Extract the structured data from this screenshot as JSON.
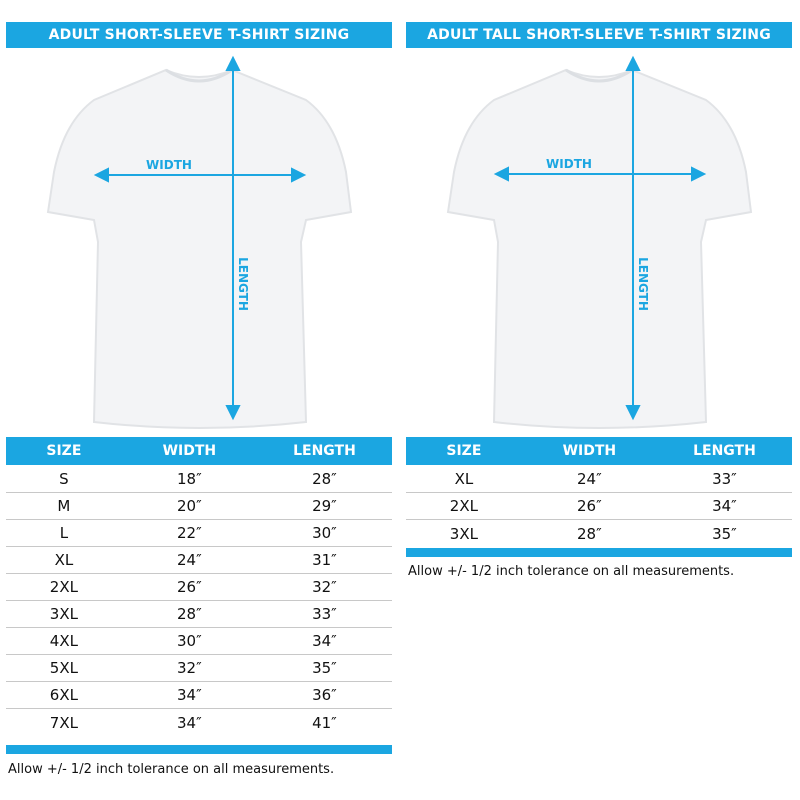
{
  "accent_color": "#1ba6e1",
  "left": {
    "title": "ADULT SHORT-SLEEVE T-SHIRT SIZING",
    "width_label": "WIDTH",
    "length_label": "LENGTH",
    "headers": [
      "SIZE",
      "WIDTH",
      "LENGTH"
    ],
    "rows": [
      [
        "S",
        "18″",
        "28″"
      ],
      [
        "M",
        "20″",
        "29″"
      ],
      [
        "L",
        "22″",
        "30″"
      ],
      [
        "XL",
        "24″",
        "31″"
      ],
      [
        "2XL",
        "26″",
        "32″"
      ],
      [
        "3XL",
        "28″",
        "33″"
      ],
      [
        "4XL",
        "30″",
        "34″"
      ],
      [
        "5XL",
        "32″",
        "35″"
      ],
      [
        "6XL",
        "34″",
        "36″"
      ],
      [
        "7XL",
        "34″",
        "41″"
      ]
    ],
    "note": "Allow +/- 1/2 inch tolerance on all measurements."
  },
  "right": {
    "title": "ADULT TALL SHORT-SLEEVE T-SHIRT SIZING",
    "width_label": "WIDTH",
    "length_label": "LENGTH",
    "headers": [
      "SIZE",
      "WIDTH",
      "LENGTH"
    ],
    "rows": [
      [
        "XL",
        "24″",
        "33″"
      ],
      [
        "2XL",
        "26″",
        "34″"
      ],
      [
        "3XL",
        "28″",
        "35″"
      ]
    ],
    "note": "Allow +/- 1/2 inch tolerance on all measurements."
  }
}
